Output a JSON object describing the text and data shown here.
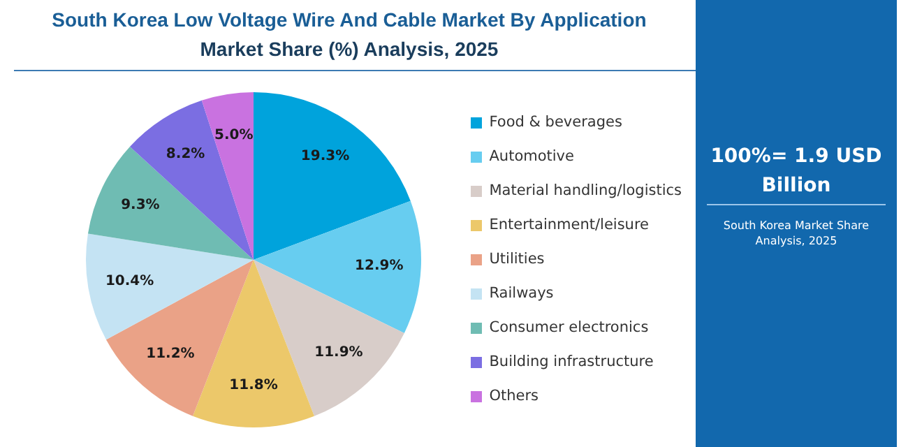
{
  "chart_data": {
    "type": "pie",
    "title": "South Korea Low Voltage Wire And Cable Market By Application",
    "subtitle": "Market Share (%) Analysis, 2025",
    "categories": [
      "Food & beverages",
      "Automotive",
      "Material handling/logistics",
      "Entertainment/leisure",
      "Utilities",
      "Railways",
      "Consumer electronics",
      "Building infrastructure",
      "Others"
    ],
    "values": [
      19.3,
      12.9,
      11.9,
      11.8,
      11.2,
      10.4,
      9.3,
      8.2,
      5.0
    ],
    "colors": [
      "#00a3dc",
      "#67cdf0",
      "#d8cdc9",
      "#ecc86a",
      "#eaa287",
      "#c4e3f3",
      "#6fbcb3",
      "#7b6ee2",
      "#c972e0"
    ],
    "value_labels": [
      "19.3%",
      "12.9%",
      "11.9%",
      "11.8%",
      "11.2%",
      "10.4%",
      "9.3%",
      "8.2%",
      "5.0%"
    ],
    "legend": "right",
    "annotations": [
      "100%= 1.9 USD Billion",
      "South Korea Market Share Analysis, 2025"
    ]
  }
}
